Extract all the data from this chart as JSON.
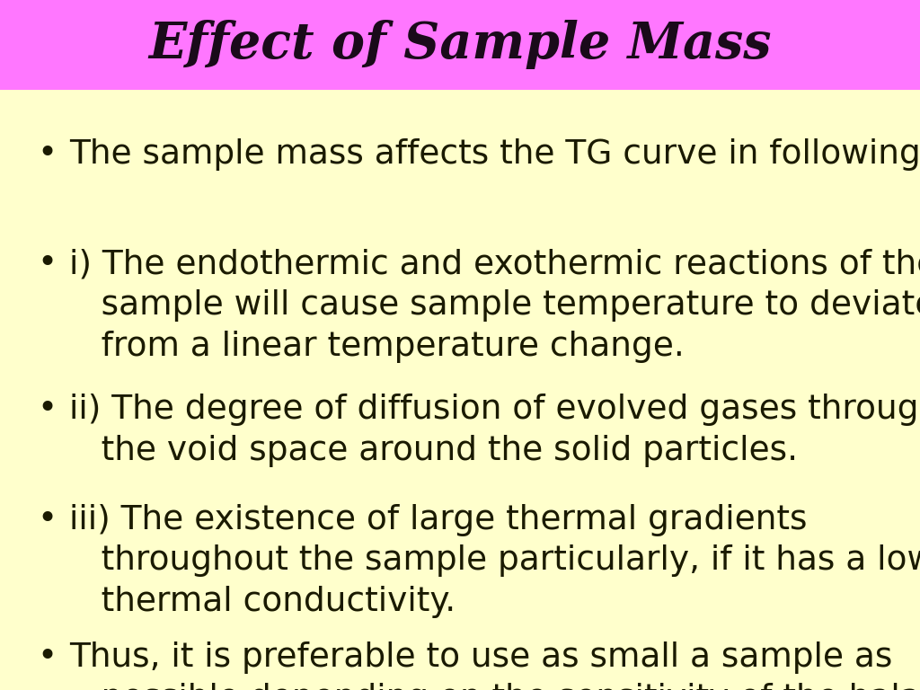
{
  "title": "Effect of Sample Mass",
  "title_color": "#1a0a1a",
  "title_bg_color": "#ff77ff",
  "body_bg_color": "#ffffcc",
  "text_color": "#1a1a00",
  "title_fontsize": 40,
  "body_fontsize": 27,
  "bullet_points": [
    "The sample mass affects the TG curve in following",
    "i) The endothermic and exothermic reactions of the\n   sample will cause sample temperature to deviate\n   from a linear temperature change.",
    "ii) The degree of diffusion of evolved gases through\n   the void space around the solid particles.",
    "iii) The existence of large thermal gradients\n   throughout the sample particularly, if it has a low\n   thermal conductivity.",
    "Thus, it is preferable to use as small a sample as\n   possible depending on the sensitivity of the balance."
  ]
}
